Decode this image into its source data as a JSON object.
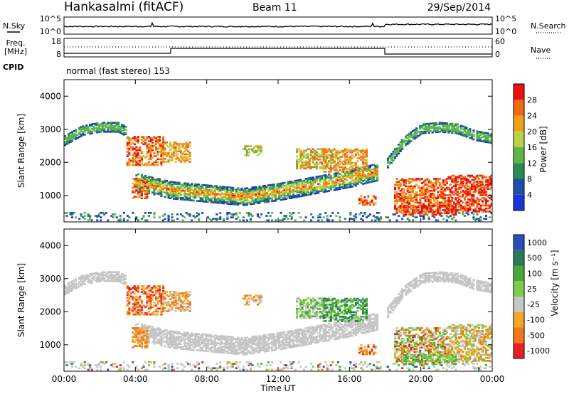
{
  "header": {
    "station": "Hankasalmi (fitACF)",
    "beam": "Beam 11",
    "date": "29/Sep/2014"
  },
  "sky_panel": {
    "left_label": "N.Sky",
    "right_label": "N.Search",
    "ytick_top": "10^5",
    "ytick_bottom": "10^0"
  },
  "freq_panel": {
    "label_line1": "Freq.",
    "label_line2": "[MHz]",
    "cpid_label": "CPID",
    "nave_label": "Nave",
    "left_ticks": [
      "18",
      "8"
    ],
    "right_ticks": [
      "60",
      "0"
    ]
  },
  "mode_text": "normal (fast stereo) 153",
  "colors": {
    "power": [
      "#1a35d8",
      "#1f4fa8",
      "#2d8a55",
      "#5cb64a",
      "#b8d34a",
      "#f0a018",
      "#f06a14",
      "#e81010"
    ],
    "velocity": [
      "#2a4fb8",
      "#2a7a5a",
      "#48a83a",
      "#7ccd4a",
      "#c6c6c6",
      "#f4a626",
      "#f07818",
      "#e82020"
    ],
    "ground_scatter": "#c6c6c6"
  },
  "chart_data": [
    {
      "type": "heatmap",
      "name": "power-panel",
      "ylabel": "Slant Range [km]",
      "yticks": [
        "1000",
        "2000",
        "3000",
        "4000"
      ],
      "ylim": [
        200,
        4500
      ],
      "colorbar_label": "Power [dB]",
      "colorbar_ticks": [
        "4",
        "8",
        "12",
        "16",
        "20",
        "24",
        "28"
      ],
      "features": [
        {
          "feature": "upper-arc-early",
          "x": [
            0,
            1,
            2,
            3,
            3.5
          ],
          "y": [
            2650,
            2950,
            3050,
            3050,
            2900
          ]
        },
        {
          "feature": "main-band",
          "x": [
            4,
            6,
            8,
            10,
            12,
            14,
            16,
            17.5
          ],
          "y": [
            1400,
            1150,
            1050,
            950,
            1100,
            1300,
            1500,
            1700
          ]
        },
        {
          "feature": "upper-arc-late",
          "x": [
            18,
            19,
            20,
            21,
            22,
            23,
            24
          ],
          "y": [
            1900,
            2600,
            3000,
            3050,
            3000,
            2800,
            2700
          ]
        }
      ]
    },
    {
      "type": "heatmap",
      "name": "velocity-panel",
      "ylabel": "Slant Range [km]",
      "yticks": [
        "1000",
        "2000",
        "3000",
        "4000"
      ],
      "ylim": [
        200,
        4500
      ],
      "colorbar_label": "Velocity [m s⁻¹]",
      "colorbar_ticks": [
        "1000",
        "500",
        "100",
        "25",
        "-25",
        "-100",
        "-500",
        "-1000"
      ],
      "xlabel": "Time UT",
      "xticks": [
        "00:00",
        "04:00",
        "08:00",
        "12:00",
        "16:00",
        "20:00",
        "00:00"
      ],
      "xlim": [
        0,
        24
      ]
    }
  ]
}
